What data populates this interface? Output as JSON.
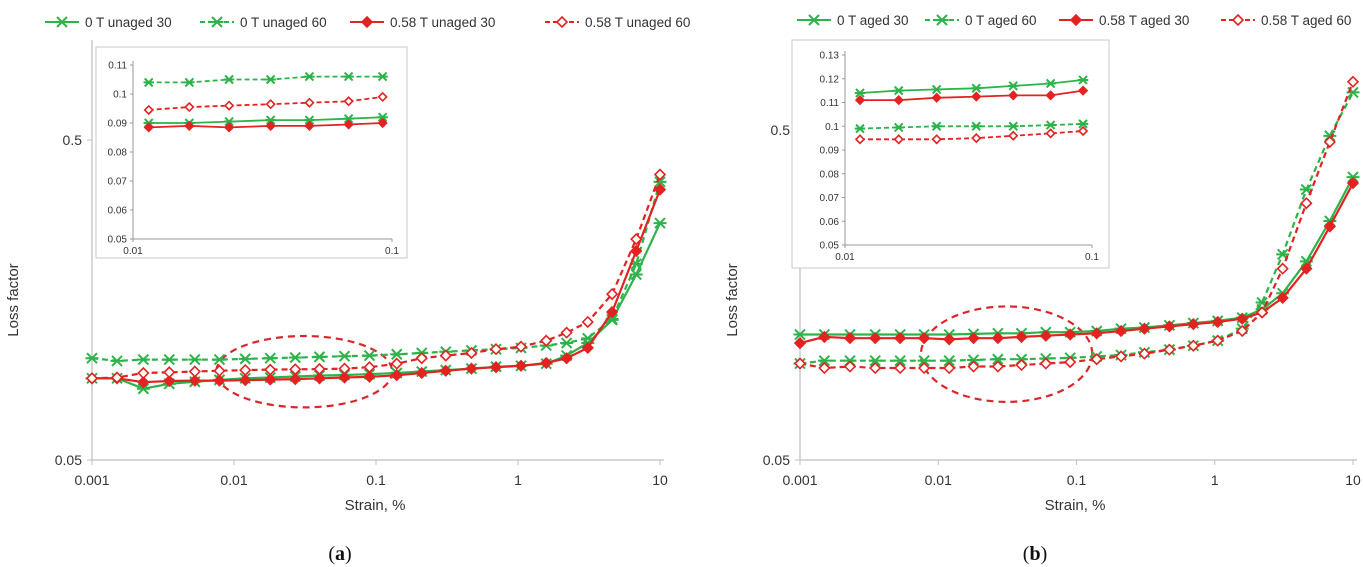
{
  "figure": {
    "panels": [
      {
        "id": "a",
        "caption_letter": "a",
        "legend": [
          "0 T unaged 30",
          "0 T unaged 60",
          "0.58 T unaged 30",
          "0.58 T unaged 60"
        ]
      },
      {
        "id": "b",
        "caption_letter": "b",
        "legend": [
          "0 T aged 30",
          "0 T aged 60",
          "0.58 T aged 30",
          "0.58 T aged 60"
        ]
      }
    ]
  },
  "colors": {
    "green": "#2db34a",
    "red": "#e32222",
    "ellipse": "#d9262c",
    "axis": "#bfbfbf"
  },
  "chart_data": [
    {
      "type": "line",
      "panel": "a",
      "xlabel": "Strain, %",
      "ylabel": "Loss factor",
      "x_scale": "log",
      "y_scale": "log",
      "xlim": [
        0.001,
        10
      ],
      "ylim": [
        0.05,
        0.5
      ],
      "x_ticks": [
        "0.001",
        "0.01",
        "0.1",
        "1",
        "10"
      ],
      "y_ticks": [
        "0.05",
        "0.5"
      ],
      "legend_position": "top",
      "x": [
        0.001,
        0.0015,
        0.0023,
        0.0035,
        0.0053,
        0.0079,
        0.012,
        0.018,
        0.027,
        0.04,
        0.06,
        0.09,
        0.14,
        0.21,
        0.31,
        0.47,
        0.7,
        1.05,
        1.58,
        2.2,
        3.1,
        4.6,
        6.8,
        10
      ],
      "series": [
        {
          "name": "0 T unaged 30",
          "color": "green",
          "dash": "solid",
          "marker": "star",
          "values": [
            0.09,
            0.09,
            0.0835,
            0.0865,
            0.0878,
            0.089,
            0.09,
            0.0905,
            0.0912,
            0.0918,
            0.0922,
            0.0927,
            0.0935,
            0.0945,
            0.0955,
            0.0965,
            0.0978,
            0.0985,
            0.1,
            0.106,
            0.116,
            0.137,
            0.19,
            0.275
          ]
        },
        {
          "name": "0 T unaged 60",
          "color": "green",
          "dash": "dashed",
          "marker": "star",
          "values": [
            0.104,
            0.102,
            0.103,
            0.103,
            0.103,
            0.103,
            0.1035,
            0.104,
            0.1045,
            0.105,
            0.1055,
            0.106,
            0.107,
            0.108,
            0.109,
            0.11,
            0.111,
            0.112,
            0.114,
            0.116,
            0.12,
            0.138,
            0.205,
            0.37
          ]
        },
        {
          "name": "0.58 T unaged 30",
          "color": "red",
          "dash": "solid",
          "marker": "diamond",
          "values": [
            0.09,
            0.09,
            0.0875,
            0.0883,
            0.0885,
            0.0885,
            0.0888,
            0.0892,
            0.0895,
            0.09,
            0.0905,
            0.091,
            0.092,
            0.0935,
            0.095,
            0.0965,
            0.0975,
            0.0985,
            0.1005,
            0.104,
            0.112,
            0.145,
            0.225,
            0.35
          ]
        },
        {
          "name": "0.58 T unaged 60",
          "color": "red",
          "dash": "dashed",
          "marker": "diamond-open",
          "values": [
            0.09,
            0.0905,
            0.0935,
            0.094,
            0.0945,
            0.095,
            0.0955,
            0.0958,
            0.096,
            0.0962,
            0.0965,
            0.0975,
            0.1,
            0.104,
            0.106,
            0.108,
            0.111,
            0.113,
            0.118,
            0.125,
            0.135,
            0.165,
            0.245,
            0.39
          ]
        }
      ],
      "annotations": [
        {
          "type": "ellipse",
          "style": "dashed",
          "x_range": [
            0.0075,
            0.13
          ],
          "y_range": [
            0.073,
            0.122
          ]
        }
      ],
      "inset": {
        "xlim": [
          0.01,
          0.1
        ],
        "ylim": [
          0.05,
          0.11
        ],
        "x_ticks": [
          "0.01",
          "0.1"
        ],
        "y_ticks": [
          "0.05",
          "0.06",
          "0.07",
          "0.08",
          "0.09",
          "0.1",
          "0.11"
        ],
        "x": [
          0.0115,
          0.0165,
          0.0235,
          0.034,
          0.048,
          0.068,
          0.092
        ],
        "series": [
          {
            "name": "0 T unaged 30",
            "values": [
              0.09,
              0.09,
              0.0905,
              0.091,
              0.091,
              0.0915,
              0.092
            ]
          },
          {
            "name": "0 T unaged 60",
            "values": [
              0.104,
              0.104,
              0.105,
              0.105,
              0.106,
              0.106,
              0.106
            ]
          },
          {
            "name": "0.58 T unaged 30",
            "values": [
              0.0885,
              0.089,
              0.0885,
              0.089,
              0.089,
              0.0895,
              0.09
            ]
          },
          {
            "name": "0.58 T unaged 60",
            "values": [
              0.0945,
              0.0955,
              0.096,
              0.0965,
              0.097,
              0.0975,
              0.099
            ]
          }
        ]
      }
    },
    {
      "type": "line",
      "panel": "b",
      "xlabel": "Strain, %",
      "ylabel": "Loss factor",
      "x_scale": "log",
      "y_scale": "log",
      "xlim": [
        0.001,
        10
      ],
      "ylim": [
        0.05,
        0.5
      ],
      "x_ticks": [
        "0.001",
        "0.01",
        "0.1",
        "1",
        "10"
      ],
      "y_ticks": [
        "0.05",
        "0.5"
      ],
      "legend_position": "top",
      "x": [
        0.001,
        0.0015,
        0.0023,
        0.0035,
        0.0053,
        0.0079,
        0.012,
        0.018,
        0.027,
        0.04,
        0.06,
        0.09,
        0.14,
        0.21,
        0.31,
        0.47,
        0.7,
        1.05,
        1.58,
        2.2,
        3.1,
        4.6,
        6.8,
        10
      ],
      "series": [
        {
          "name": "0 T aged 30",
          "color": "green",
          "dash": "solid",
          "marker": "star",
          "values": [
            0.12,
            0.12,
            0.12,
            0.12,
            0.12,
            0.12,
            0.12,
            0.1205,
            0.121,
            0.121,
            0.122,
            0.122,
            0.123,
            0.125,
            0.126,
            0.128,
            0.13,
            0.132,
            0.135,
            0.143,
            0.16,
            0.2,
            0.265,
            0.36
          ]
        },
        {
          "name": "0 T aged 60",
          "color": "green",
          "dash": "dashed",
          "marker": "star",
          "values": [
            0.098,
            0.1,
            0.1,
            0.1,
            0.1,
            0.1,
            0.1,
            0.1005,
            0.101,
            0.101,
            0.1015,
            0.102,
            0.103,
            0.104,
            0.106,
            0.108,
            0.111,
            0.115,
            0.125,
            0.15,
            0.21,
            0.33,
            0.48,
            0.65
          ]
        },
        {
          "name": "0.58 T aged 30",
          "color": "red",
          "dash": "solid",
          "marker": "diamond",
          "values": [
            0.113,
            0.118,
            0.117,
            0.117,
            0.117,
            0.117,
            0.116,
            0.117,
            0.117,
            0.118,
            0.119,
            0.12,
            0.121,
            0.123,
            0.125,
            0.127,
            0.129,
            0.131,
            0.134,
            0.14,
            0.155,
            0.19,
            0.255,
            0.345
          ]
        },
        {
          "name": "0.58 T aged 60",
          "color": "red",
          "dash": "dashed",
          "marker": "diamond-open",
          "values": [
            0.098,
            0.095,
            0.096,
            0.095,
            0.095,
            0.095,
            0.095,
            0.096,
            0.096,
            0.097,
            0.098,
            0.099,
            0.101,
            0.103,
            0.105,
            0.108,
            0.111,
            0.115,
            0.123,
            0.14,
            0.19,
            0.3,
            0.46,
            0.7
          ]
        }
      ],
      "annotations": [
        {
          "type": "ellipse",
          "style": "dashed",
          "x_range": [
            0.0075,
            0.13
          ],
          "y_range": [
            0.075,
            0.146
          ]
        }
      ],
      "inset": {
        "xlim": [
          0.01,
          0.1
        ],
        "ylim": [
          0.05,
          0.13
        ],
        "x_ticks": [
          "0.01",
          "0.1"
        ],
        "y_ticks": [
          "0.05",
          "0.06",
          "0.07",
          "0.08",
          "0.09",
          "0.1",
          "0.11",
          "0.12",
          "0.13"
        ],
        "x": [
          0.0115,
          0.0165,
          0.0235,
          0.034,
          0.048,
          0.068,
          0.092
        ],
        "series": [
          {
            "name": "0 T aged 30",
            "values": [
              0.114,
              0.115,
              0.1155,
              0.116,
              0.117,
              0.118,
              0.1195
            ]
          },
          {
            "name": "0 T aged 60",
            "values": [
              0.099,
              0.0995,
              0.1,
              0.1,
              0.1,
              0.1005,
              0.101
            ]
          },
          {
            "name": "0.58 T aged 30",
            "values": [
              0.111,
              0.111,
              0.112,
              0.1125,
              0.113,
              0.113,
              0.115
            ]
          },
          {
            "name": "0.58 T aged 60",
            "values": [
              0.0945,
              0.0945,
              0.0945,
              0.095,
              0.096,
              0.097,
              0.098
            ]
          }
        ]
      }
    }
  ]
}
